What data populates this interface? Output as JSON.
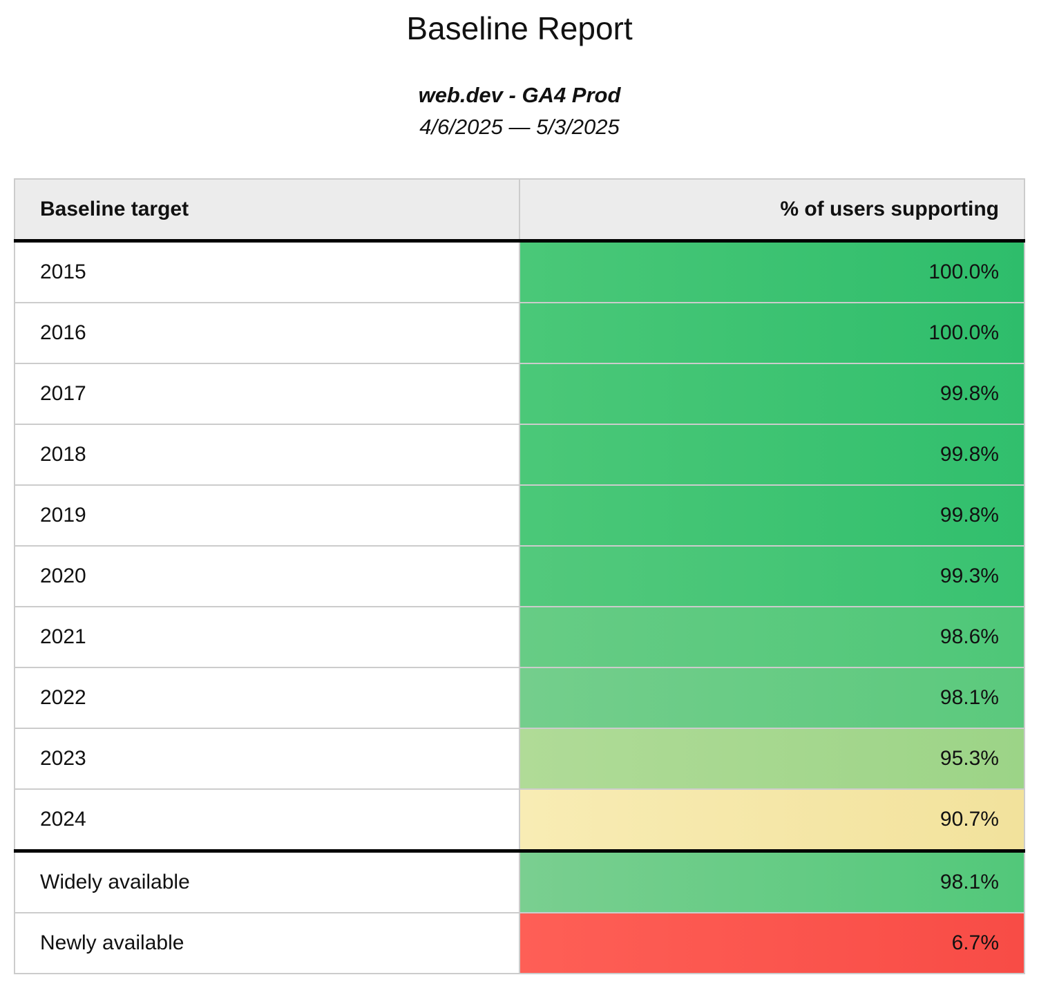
{
  "page": {
    "title": "Baseline Report",
    "subtitle": "web.dev - GA4 Prod",
    "date_range": "4/6/2025 — 5/3/2025"
  },
  "colors": {
    "header_bg": "#ececec",
    "grid_border": "#cccccc",
    "section_border": "#000000",
    "good_green": "#38c473",
    "warn_yellow": "#f7e8a8",
    "bad_red": "#fd5a52"
  },
  "table": {
    "columns": [
      {
        "label": "Baseline target"
      },
      {
        "label": "% of users supporting"
      }
    ],
    "rows": [
      {
        "target": "2015",
        "value": "100.0%",
        "color_from": "#4ac878",
        "color_to": "#2ebd6b",
        "section_break_after": false
      },
      {
        "target": "2016",
        "value": "100.0%",
        "color_from": "#4ac878",
        "color_to": "#2ebd6b",
        "section_break_after": false
      },
      {
        "target": "2017",
        "value": "99.8%",
        "color_from": "#4bc878",
        "color_to": "#31bf6d",
        "section_break_after": false
      },
      {
        "target": "2018",
        "value": "99.8%",
        "color_from": "#4bc878",
        "color_to": "#31bf6d",
        "section_break_after": false
      },
      {
        "target": "2019",
        "value": "99.8%",
        "color_from": "#4bc878",
        "color_to": "#31bf6d",
        "section_break_after": false
      },
      {
        "target": "2020",
        "value": "99.3%",
        "color_from": "#53c97c",
        "color_to": "#39c271",
        "section_break_after": false
      },
      {
        "target": "2021",
        "value": "98.6%",
        "color_from": "#67cc85",
        "color_to": "#4ec778",
        "section_break_after": false
      },
      {
        "target": "2022",
        "value": "98.1%",
        "color_from": "#74ce8c",
        "color_to": "#5bc97d",
        "section_break_after": false
      },
      {
        "target": "2023",
        "value": "95.3%",
        "color_from": "#b0db97",
        "color_to": "#9cd487",
        "section_break_after": false
      },
      {
        "target": "2024",
        "value": "90.7%",
        "color_from": "#f8ecb4",
        "color_to": "#f2e29c",
        "section_break_after": true
      },
      {
        "target": "Widely available",
        "value": "98.1%",
        "color_from": "#7acf90",
        "color_to": "#52c87a",
        "section_break_after": false
      },
      {
        "target": "Newly available",
        "value": "6.7%",
        "color_from": "#fe5f56",
        "color_to": "#f84c46",
        "section_break_after": false
      }
    ]
  },
  "chart_data": {
    "type": "table",
    "title": "Baseline Report",
    "subtitle": "web.dev - GA4 Prod",
    "date_range": "4/6/2025 — 5/3/2025",
    "columns": [
      "Baseline target",
      "% of users supporting"
    ],
    "categories": [
      "2015",
      "2016",
      "2017",
      "2018",
      "2019",
      "2020",
      "2021",
      "2022",
      "2023",
      "2024",
      "Widely available",
      "Newly available"
    ],
    "values": [
      100.0,
      100.0,
      99.8,
      99.8,
      99.8,
      99.3,
      98.6,
      98.1,
      95.3,
      90.7,
      98.1,
      6.7
    ],
    "value_unit": "%",
    "color_coding": "green = high support, yellow = medium, red = low"
  }
}
